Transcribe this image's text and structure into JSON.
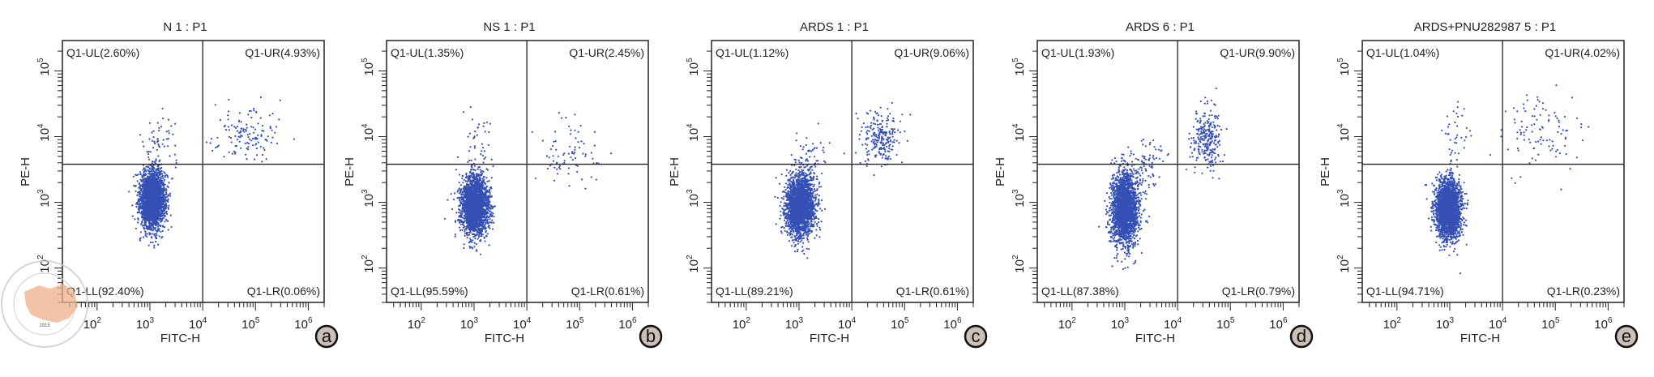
{
  "chart_data": [
    {
      "type": "scatter",
      "panel_label": "a",
      "title": "N 1 : P1",
      "xlabel": "FITC-H",
      "ylabel": "PE-H",
      "xscale": "log",
      "yscale": "log",
      "xlim": [
        22,
        2000000
      ],
      "ylim": [
        30,
        290000
      ],
      "xticks": [
        "10^2",
        "10^3",
        "10^4",
        "10^5",
        "10^6"
      ],
      "yticks": [
        "10^2",
        "10^3",
        "10^4",
        "10^5"
      ],
      "gate": {
        "fitc": 10000,
        "pe": 3800
      },
      "quadrants": {
        "UL": "Q1-UL(2.60%)",
        "UR": "Q1-UR(4.93%)",
        "LL": "Q1-LL(92.40%)",
        "LR": "Q1-LR(0.06%)"
      },
      "populations": [
        {
          "fitc_log10": 3.05,
          "pe_log10": 3.05,
          "fitc_sd": 0.12,
          "pe_sd": 0.22,
          "fraction": 0.93
        },
        {
          "fitc_log10": 4.85,
          "pe_log10": 4.05,
          "fitc_sd": 0.3,
          "pe_sd": 0.22,
          "fraction": 0.05
        },
        {
          "fitc_log10": 3.2,
          "pe_log10": 4.0,
          "fitc_sd": 0.2,
          "pe_sd": 0.25,
          "fraction": 0.02
        }
      ]
    },
    {
      "type": "scatter",
      "panel_label": "b",
      "title": "NS 1 : P1",
      "xlabel": "FITC-H",
      "ylabel": "PE-H",
      "xscale": "log",
      "yscale": "log",
      "xlim": [
        22,
        2000000
      ],
      "ylim": [
        30,
        290000
      ],
      "xticks": [
        "10^2",
        "10^3",
        "10^4",
        "10^5",
        "10^6"
      ],
      "yticks": [
        "10^2",
        "10^3",
        "10^4",
        "10^5"
      ],
      "gate": {
        "fitc": 10000,
        "pe": 3800
      },
      "quadrants": {
        "UL": "Q1-UL(1.35%)",
        "UR": "Q1-UR(2.45%)",
        "LL": "Q1-LL(95.59%)",
        "LR": "Q1-LR(0.61%)"
      },
      "populations": [
        {
          "fitc_log10": 3.02,
          "pe_log10": 2.95,
          "fitc_sd": 0.13,
          "pe_sd": 0.22,
          "fraction": 0.955
        },
        {
          "fitc_log10": 4.75,
          "pe_log10": 3.7,
          "fitc_sd": 0.3,
          "pe_sd": 0.25,
          "fraction": 0.03
        },
        {
          "fitc_log10": 3.1,
          "pe_log10": 3.9,
          "fitc_sd": 0.15,
          "pe_sd": 0.25,
          "fraction": 0.015
        }
      ]
    },
    {
      "type": "scatter",
      "panel_label": "c",
      "title": "ARDS 1 : P1",
      "xlabel": "FITC-H",
      "ylabel": "PE-H",
      "xscale": "log",
      "yscale": "log",
      "xlim": [
        22,
        2000000
      ],
      "ylim": [
        30,
        290000
      ],
      "xticks": [
        "10^2",
        "10^3",
        "10^4",
        "10^5",
        "10^6"
      ],
      "yticks": [
        "10^2",
        "10^3",
        "10^4",
        "10^5"
      ],
      "gate": {
        "fitc": 10000,
        "pe": 3800
      },
      "quadrants": {
        "UL": "Q1-UL(1.12%)",
        "UR": "Q1-UR(9.06%)",
        "LL": "Q1-LL(89.21%)",
        "LR": "Q1-LR(0.61%)"
      },
      "populations": [
        {
          "fitc_log10": 3.02,
          "pe_log10": 2.95,
          "fitc_sd": 0.14,
          "pe_sd": 0.24,
          "fraction": 0.89
        },
        {
          "fitc_log10": 4.55,
          "pe_log10": 3.98,
          "fitc_sd": 0.18,
          "pe_sd": 0.2,
          "fraction": 0.09
        },
        {
          "fitc_log10": 3.3,
          "pe_log10": 3.7,
          "fitc_sd": 0.2,
          "pe_sd": 0.2,
          "fraction": 0.02
        }
      ]
    },
    {
      "type": "scatter",
      "panel_label": "d",
      "title": "ARDS 6 : P1",
      "xlabel": "FITC-H",
      "ylabel": "PE-H",
      "xscale": "log",
      "yscale": "log",
      "xlim": [
        22,
        2000000
      ],
      "ylim": [
        30,
        290000
      ],
      "xticks": [
        "10^2",
        "10^3",
        "10^4",
        "10^5",
        "10^6"
      ],
      "yticks": [
        "10^2",
        "10^3",
        "10^4",
        "10^5"
      ],
      "gate": {
        "fitc": 10000,
        "pe": 3800
      },
      "quadrants": {
        "UL": "Q1-UL(1.93%)",
        "UR": "Q1-UR(9.90%)",
        "LL": "Q1-LL(87.38%)",
        "LR": "Q1-LR(0.79%)"
      },
      "populations": [
        {
          "fitc_log10": 3.0,
          "pe_log10": 2.9,
          "fitc_sd": 0.13,
          "pe_sd": 0.28,
          "fraction": 0.87
        },
        {
          "fitc_log10": 4.55,
          "pe_log10": 3.98,
          "fitc_sd": 0.15,
          "pe_sd": 0.22,
          "fraction": 0.1
        },
        {
          "fitc_log10": 3.4,
          "pe_log10": 3.6,
          "fitc_sd": 0.2,
          "pe_sd": 0.2,
          "fraction": 0.03
        }
      ]
    },
    {
      "type": "scatter",
      "panel_label": "e",
      "title": "ARDS+PNU282987 5 : P1",
      "xlabel": "FITC-H",
      "ylabel": "PE-H",
      "xscale": "log",
      "yscale": "log",
      "xlim": [
        22,
        2000000
      ],
      "ylim": [
        30,
        290000
      ],
      "xticks": [
        "10^2",
        "10^3",
        "10^4",
        "10^5",
        "10^6"
      ],
      "yticks": [
        "10^2",
        "10^3",
        "10^4",
        "10^5"
      ],
      "gate": {
        "fitc": 10000,
        "pe": 3800
      },
      "quadrants": {
        "UL": "Q1-UL(1.04%)",
        "UR": "Q1-UR(4.02%)",
        "LL": "Q1-LL(94.71%)",
        "LR": "Q1-LR(0.23%)"
      },
      "populations": [
        {
          "fitc_log10": 2.97,
          "pe_log10": 2.9,
          "fitc_sd": 0.12,
          "pe_sd": 0.22,
          "fraction": 0.945
        },
        {
          "fitc_log10": 4.75,
          "pe_log10": 4.1,
          "fitc_sd": 0.35,
          "pe_sd": 0.3,
          "fraction": 0.04
        },
        {
          "fitc_log10": 3.1,
          "pe_log10": 4.0,
          "fitc_sd": 0.15,
          "pe_sd": 0.35,
          "fraction": 0.015
        }
      ]
    }
  ],
  "colors": {
    "points": "#3550b5",
    "label_circle": "#cbbfb8",
    "watermark": "#f0b08a"
  },
  "watermark": {
    "text": "CHINESE MEDICAL ASSOCIATION",
    "year": "1915"
  }
}
